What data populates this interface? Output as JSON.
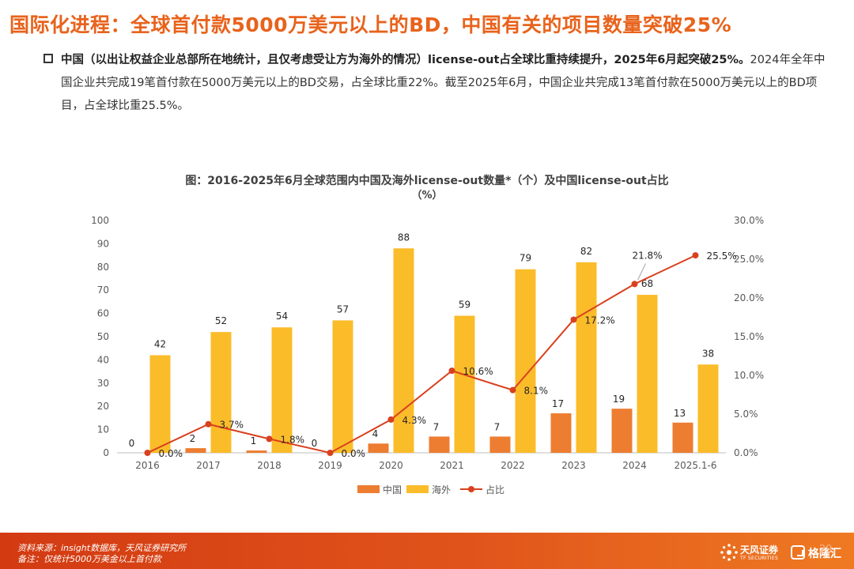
{
  "header": {
    "title": "国际化进程：全球首付款5000万美元以上的BD，中国有关的项目数量突破25%"
  },
  "bullet": {
    "bold_part": "中国（以出让权益企业总部所在地统计，且仅考虑受让方为海外的情况）license-out占全球比重持续提升，2025年6月起突破25%。",
    "normal_part": "2024年全年中国企业共完成19笔首付款在5000万美元以上的BD交易，占全球比重22%。截至2025年6月，中国企业共完成13笔首付款在5000万美元以上的BD项目，占全球比重25.5%。"
  },
  "chart_data": {
    "type": "bar",
    "title_line1": "图：2016-2025年6月全球范围内中国及海外license-out数量*（个）及中国license-out占比",
    "title_line2": "（%）",
    "categories": [
      "2016",
      "2017",
      "2018",
      "2019",
      "2020",
      "2021",
      "2022",
      "2023",
      "2024",
      "2025.1-6"
    ],
    "series": [
      {
        "name": "中国",
        "type": "bar",
        "axis": "left",
        "color": "#ed7d31",
        "values": [
          0,
          2,
          1,
          0,
          4,
          7,
          7,
          17,
          19,
          13
        ]
      },
      {
        "name": "海外",
        "type": "bar",
        "axis": "left",
        "color": "#fbbc2a",
        "values": [
          42,
          52,
          54,
          57,
          88,
          59,
          79,
          82,
          68,
          38
        ]
      },
      {
        "name": "占比",
        "type": "line",
        "axis": "right",
        "color": "#d9401e",
        "values": [
          0.0,
          3.7,
          1.8,
          0.0,
          4.3,
          10.6,
          8.1,
          17.2,
          21.8,
          25.5
        ]
      }
    ],
    "ratio_labels": [
      "0.0%",
      "3.7%",
      "1.8%",
      "0.0%",
      "4.3%",
      "10.6%",
      "8.1%",
      "17.2%",
      "21.8%",
      "25.5%"
    ],
    "y_left": {
      "min": 0,
      "max": 100,
      "ticks": [
        "0",
        "10",
        "20",
        "30",
        "40",
        "50",
        "60",
        "70",
        "80",
        "90",
        "100"
      ]
    },
    "y_right": {
      "min": 0,
      "max": 30,
      "ticks": [
        "0.0%",
        "5.0%",
        "10.0%",
        "15.0%",
        "20.0%",
        "25.0%",
        "30.0%"
      ]
    },
    "legend_position": "bottom",
    "grid": false
  },
  "footer": {
    "source": "资料来源：insight数据库，天风证券研究所",
    "note": "备注：仅统计5000万美金以上首付款",
    "logo_cn": "天风证券",
    "logo_en": "TF SECURITIES",
    "page_number": "29",
    "watermark": "格隆汇"
  }
}
